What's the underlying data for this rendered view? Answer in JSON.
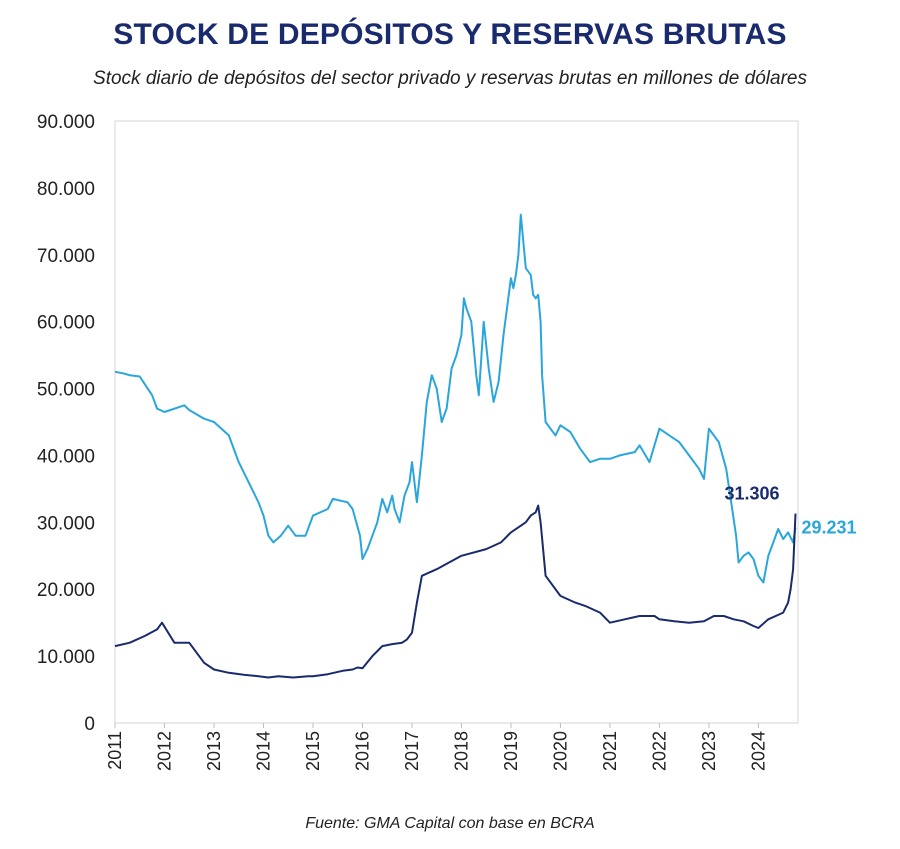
{
  "chart_data": {
    "type": "line",
    "title": "STOCK DE DEPÓSITOS Y RESERVAS BRUTAS",
    "subtitle": "Stock diario de depósitos del sector privado y reservas brutas en millones de dólares",
    "source": "Fuente: GMA Capital con base en BCRA",
    "xlabel": "",
    "ylabel": "",
    "xlim": [
      2011,
      2024.8
    ],
    "ylim": [
      0,
      90000
    ],
    "x_ticks": [
      "2011",
      "2012",
      "2013",
      "2014",
      "2015",
      "2016",
      "2017",
      "2018",
      "2019",
      "2020",
      "2021",
      "2022",
      "2023",
      "2024"
    ],
    "y_ticks": [
      0,
      10000,
      20000,
      30000,
      40000,
      50000,
      60000,
      70000,
      80000,
      90000
    ],
    "y_tick_labels": [
      "0",
      "10.000",
      "20.000",
      "30.000",
      "40.000",
      "50.000",
      "60.000",
      "70.000",
      "80.000",
      "90.000"
    ],
    "grid": false,
    "series": [
      {
        "name": "Reservas brutas",
        "color": "#2aa6dc",
        "end_label": "29.231",
        "x": [
          2011.0,
          2011.15,
          2011.3,
          2011.5,
          2011.75,
          2011.85,
          2012.0,
          2012.4,
          2012.5,
          2012.8,
          2013.0,
          2013.3,
          2013.5,
          2013.7,
          2013.9,
          2014.0,
          2014.1,
          2014.2,
          2014.35,
          2014.5,
          2014.65,
          2014.85,
          2015.0,
          2015.3,
          2015.4,
          2015.7,
          2015.8,
          2015.95,
          2016.0,
          2016.1,
          2016.2,
          2016.3,
          2016.4,
          2016.5,
          2016.6,
          2016.65,
          2016.75,
          2016.85,
          2016.95,
          2017.0,
          2017.1,
          2017.2,
          2017.3,
          2017.4,
          2017.5,
          2017.6,
          2017.7,
          2017.8,
          2017.9,
          2018.0,
          2018.05,
          2018.1,
          2018.2,
          2018.3,
          2018.35,
          2018.45,
          2018.55,
          2018.65,
          2018.75,
          2018.85,
          2019.0,
          2019.05,
          2019.1,
          2019.15,
          2019.2,
          2019.25,
          2019.3,
          2019.4,
          2019.45,
          2019.5,
          2019.55,
          2019.6,
          2019.63,
          2019.7,
          2019.8,
          2019.9,
          2020.0,
          2020.2,
          2020.4,
          2020.6,
          2020.8,
          2021.0,
          2021.2,
          2021.5,
          2021.6,
          2021.8,
          2022.0,
          2022.2,
          2022.4,
          2022.6,
          2022.8,
          2022.9,
          2023.0,
          2023.2,
          2023.35,
          2023.45,
          2023.55,
          2023.6,
          2023.7,
          2023.8,
          2023.9,
          2024.0,
          2024.1,
          2024.2,
          2024.3,
          2024.4,
          2024.5,
          2024.6,
          2024.7,
          2024.75
        ],
        "values": [
          52500,
          52300,
          52000,
          51800,
          49000,
          47000,
          46500,
          47500,
          46800,
          45500,
          45000,
          43000,
          39000,
          36000,
          33000,
          31000,
          28000,
          27000,
          28000,
          29500,
          28000,
          28000,
          31000,
          32000,
          33500,
          33000,
          32000,
          28000,
          24500,
          26000,
          28000,
          30000,
          33500,
          31500,
          34000,
          32000,
          30000,
          34000,
          36000,
          39000,
          33000,
          40000,
          48000,
          52000,
          50000,
          45000,
          47000,
          53000,
          55000,
          58000,
          63500,
          62000,
          60000,
          52000,
          49000,
          60000,
          53000,
          48000,
          51000,
          58000,
          66500,
          65000,
          67000,
          70000,
          76000,
          72000,
          68000,
          67000,
          64000,
          63500,
          64000,
          60000,
          52000,
          45000,
          44000,
          43000,
          44500,
          43500,
          41000,
          39000,
          39500,
          39500,
          40000,
          40500,
          41500,
          39000,
          44000,
          43000,
          42000,
          40000,
          38000,
          36500,
          44000,
          42000,
          38000,
          33000,
          28000,
          24000,
          25000,
          25500,
          24500,
          22000,
          21000,
          25000,
          27000,
          29000,
          27500,
          28500,
          27000,
          29231
        ]
      },
      {
        "name": "Depósitos del sector privado",
        "color": "#1a2b6d",
        "end_label": "31.306",
        "x": [
          2011.0,
          2011.3,
          2011.6,
          2011.85,
          2011.95,
          2012.2,
          2012.4,
          2012.5,
          2012.8,
          2013.0,
          2013.3,
          2013.6,
          2013.9,
          2014.1,
          2014.3,
          2014.6,
          2014.9,
          2015.0,
          2015.3,
          2015.6,
          2015.8,
          2015.9,
          2016.0,
          2016.2,
          2016.4,
          2016.6,
          2016.8,
          2016.9,
          2017.0,
          2017.1,
          2017.2,
          2017.5,
          2018.0,
          2018.5,
          2018.8,
          2019.0,
          2019.3,
          2019.4,
          2019.5,
          2019.55,
          2019.6,
          2019.7,
          2020.0,
          2020.3,
          2020.5,
          2020.8,
          2021.0,
          2021.3,
          2021.6,
          2021.9,
          2022.0,
          2022.3,
          2022.6,
          2022.9,
          2023.1,
          2023.3,
          2023.5,
          2023.7,
          2023.9,
          2024.0,
          2024.2,
          2024.5,
          2024.6,
          2024.65,
          2024.7,
          2024.75
        ],
        "values": [
          11500,
          12000,
          13000,
          14000,
          15000,
          12000,
          12000,
          12000,
          9000,
          8000,
          7500,
          7200,
          7000,
          6800,
          7000,
          6800,
          7000,
          7000,
          7300,
          7800,
          8000,
          8300,
          8200,
          10000,
          11500,
          11800,
          12000,
          12500,
          13500,
          18000,
          22000,
          23000,
          25000,
          26000,
          27000,
          28500,
          30000,
          31000,
          31500,
          32500,
          30000,
          22000,
          19000,
          18000,
          17500,
          16500,
          15000,
          15500,
          16000,
          16000,
          15500,
          15200,
          15000,
          15200,
          16000,
          16000,
          15500,
          15200,
          14500,
          14200,
          15500,
          16500,
          18000,
          20000,
          23000,
          31306
        ]
      }
    ]
  }
}
